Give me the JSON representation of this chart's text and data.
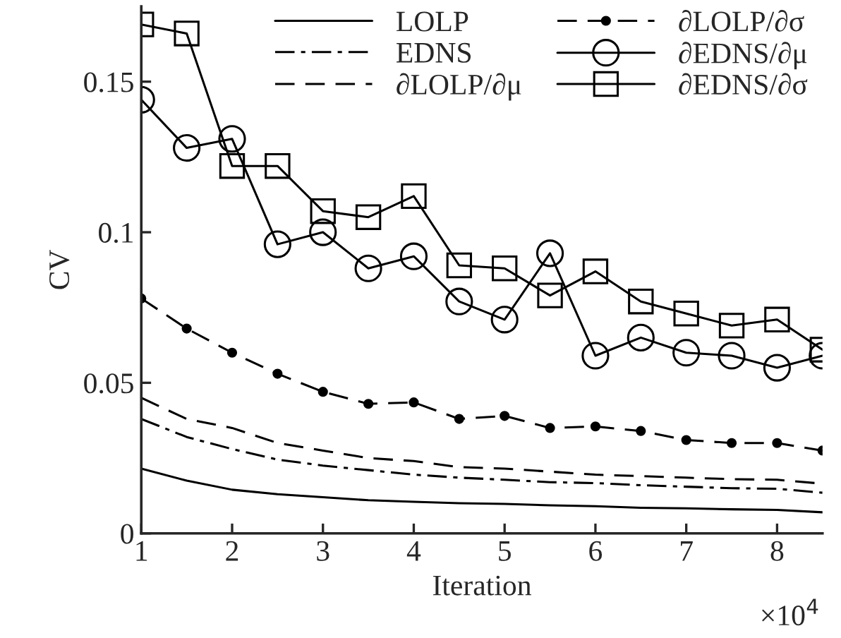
{
  "chart_data": {
    "type": "line",
    "xlabel": "Iteration",
    "ylabel": "CV",
    "x": [
      1,
      1.5,
      2,
      2.5,
      3,
      3.5,
      4,
      4.5,
      5,
      5.5,
      6,
      6.5,
      7,
      7.5,
      8,
      8.5
    ],
    "xlim": [
      1,
      8.5
    ],
    "xticks": [
      1,
      2,
      3,
      4,
      5,
      6,
      7,
      8
    ],
    "ylim": [
      0,
      0.175
    ],
    "yticks": [
      0,
      0.05,
      0.1,
      0.15
    ],
    "annotations": [
      "×10$^{4}$"
    ],
    "legend": "top right",
    "grid": false,
    "series": [
      {
        "name": "LOLP",
        "color": "#000000",
        "line_style": "solid",
        "marker": "none",
        "values": [
          0.0215,
          0.0175,
          0.0145,
          0.013,
          0.012,
          0.011,
          0.0105,
          0.01,
          0.0098,
          0.0093,
          0.009,
          0.0085,
          0.0083,
          0.008,
          0.0078,
          0.007
        ]
      },
      {
        "name": "EDNS",
        "color": "#000000",
        "line_style": "dashdot",
        "marker": "none",
        "values": [
          0.038,
          0.032,
          0.028,
          0.0245,
          0.0225,
          0.021,
          0.0195,
          0.0185,
          0.0178,
          0.017,
          0.0167,
          0.016,
          0.0155,
          0.015,
          0.0148,
          0.0135
        ]
      },
      {
        "name": "∂LOLP/∂μ",
        "color": "#000000",
        "line_style": "dashed",
        "marker": "none",
        "values": [
          0.045,
          0.038,
          0.035,
          0.03,
          0.0275,
          0.025,
          0.024,
          0.022,
          0.0215,
          0.0205,
          0.0195,
          0.019,
          0.0185,
          0.018,
          0.0178,
          0.0165
        ]
      },
      {
        "name": "∂LOLP/∂σ",
        "color": "#000000",
        "line_style": "dashed",
        "marker": "dot",
        "values": [
          0.078,
          0.068,
          0.06,
          0.053,
          0.047,
          0.043,
          0.0435,
          0.038,
          0.039,
          0.035,
          0.0355,
          0.034,
          0.031,
          0.03,
          0.03,
          0.0275
        ]
      },
      {
        "name": "∂EDNS/∂μ",
        "color": "#000000",
        "line_style": "solid",
        "marker": "circle",
        "values": [
          0.144,
          0.128,
          0.131,
          0.096,
          0.1,
          0.088,
          0.092,
          0.077,
          0.071,
          0.093,
          0.059,
          0.065,
          0.06,
          0.059,
          0.055,
          0.059
        ]
      },
      {
        "name": "∂EDNS/∂σ",
        "color": "#000000",
        "line_style": "solid",
        "marker": "square",
        "values": [
          0.169,
          0.166,
          0.122,
          0.122,
          0.107,
          0.105,
          0.112,
          0.089,
          0.088,
          0.079,
          0.087,
          0.077,
          0.073,
          0.069,
          0.071,
          0.061
        ]
      }
    ]
  }
}
